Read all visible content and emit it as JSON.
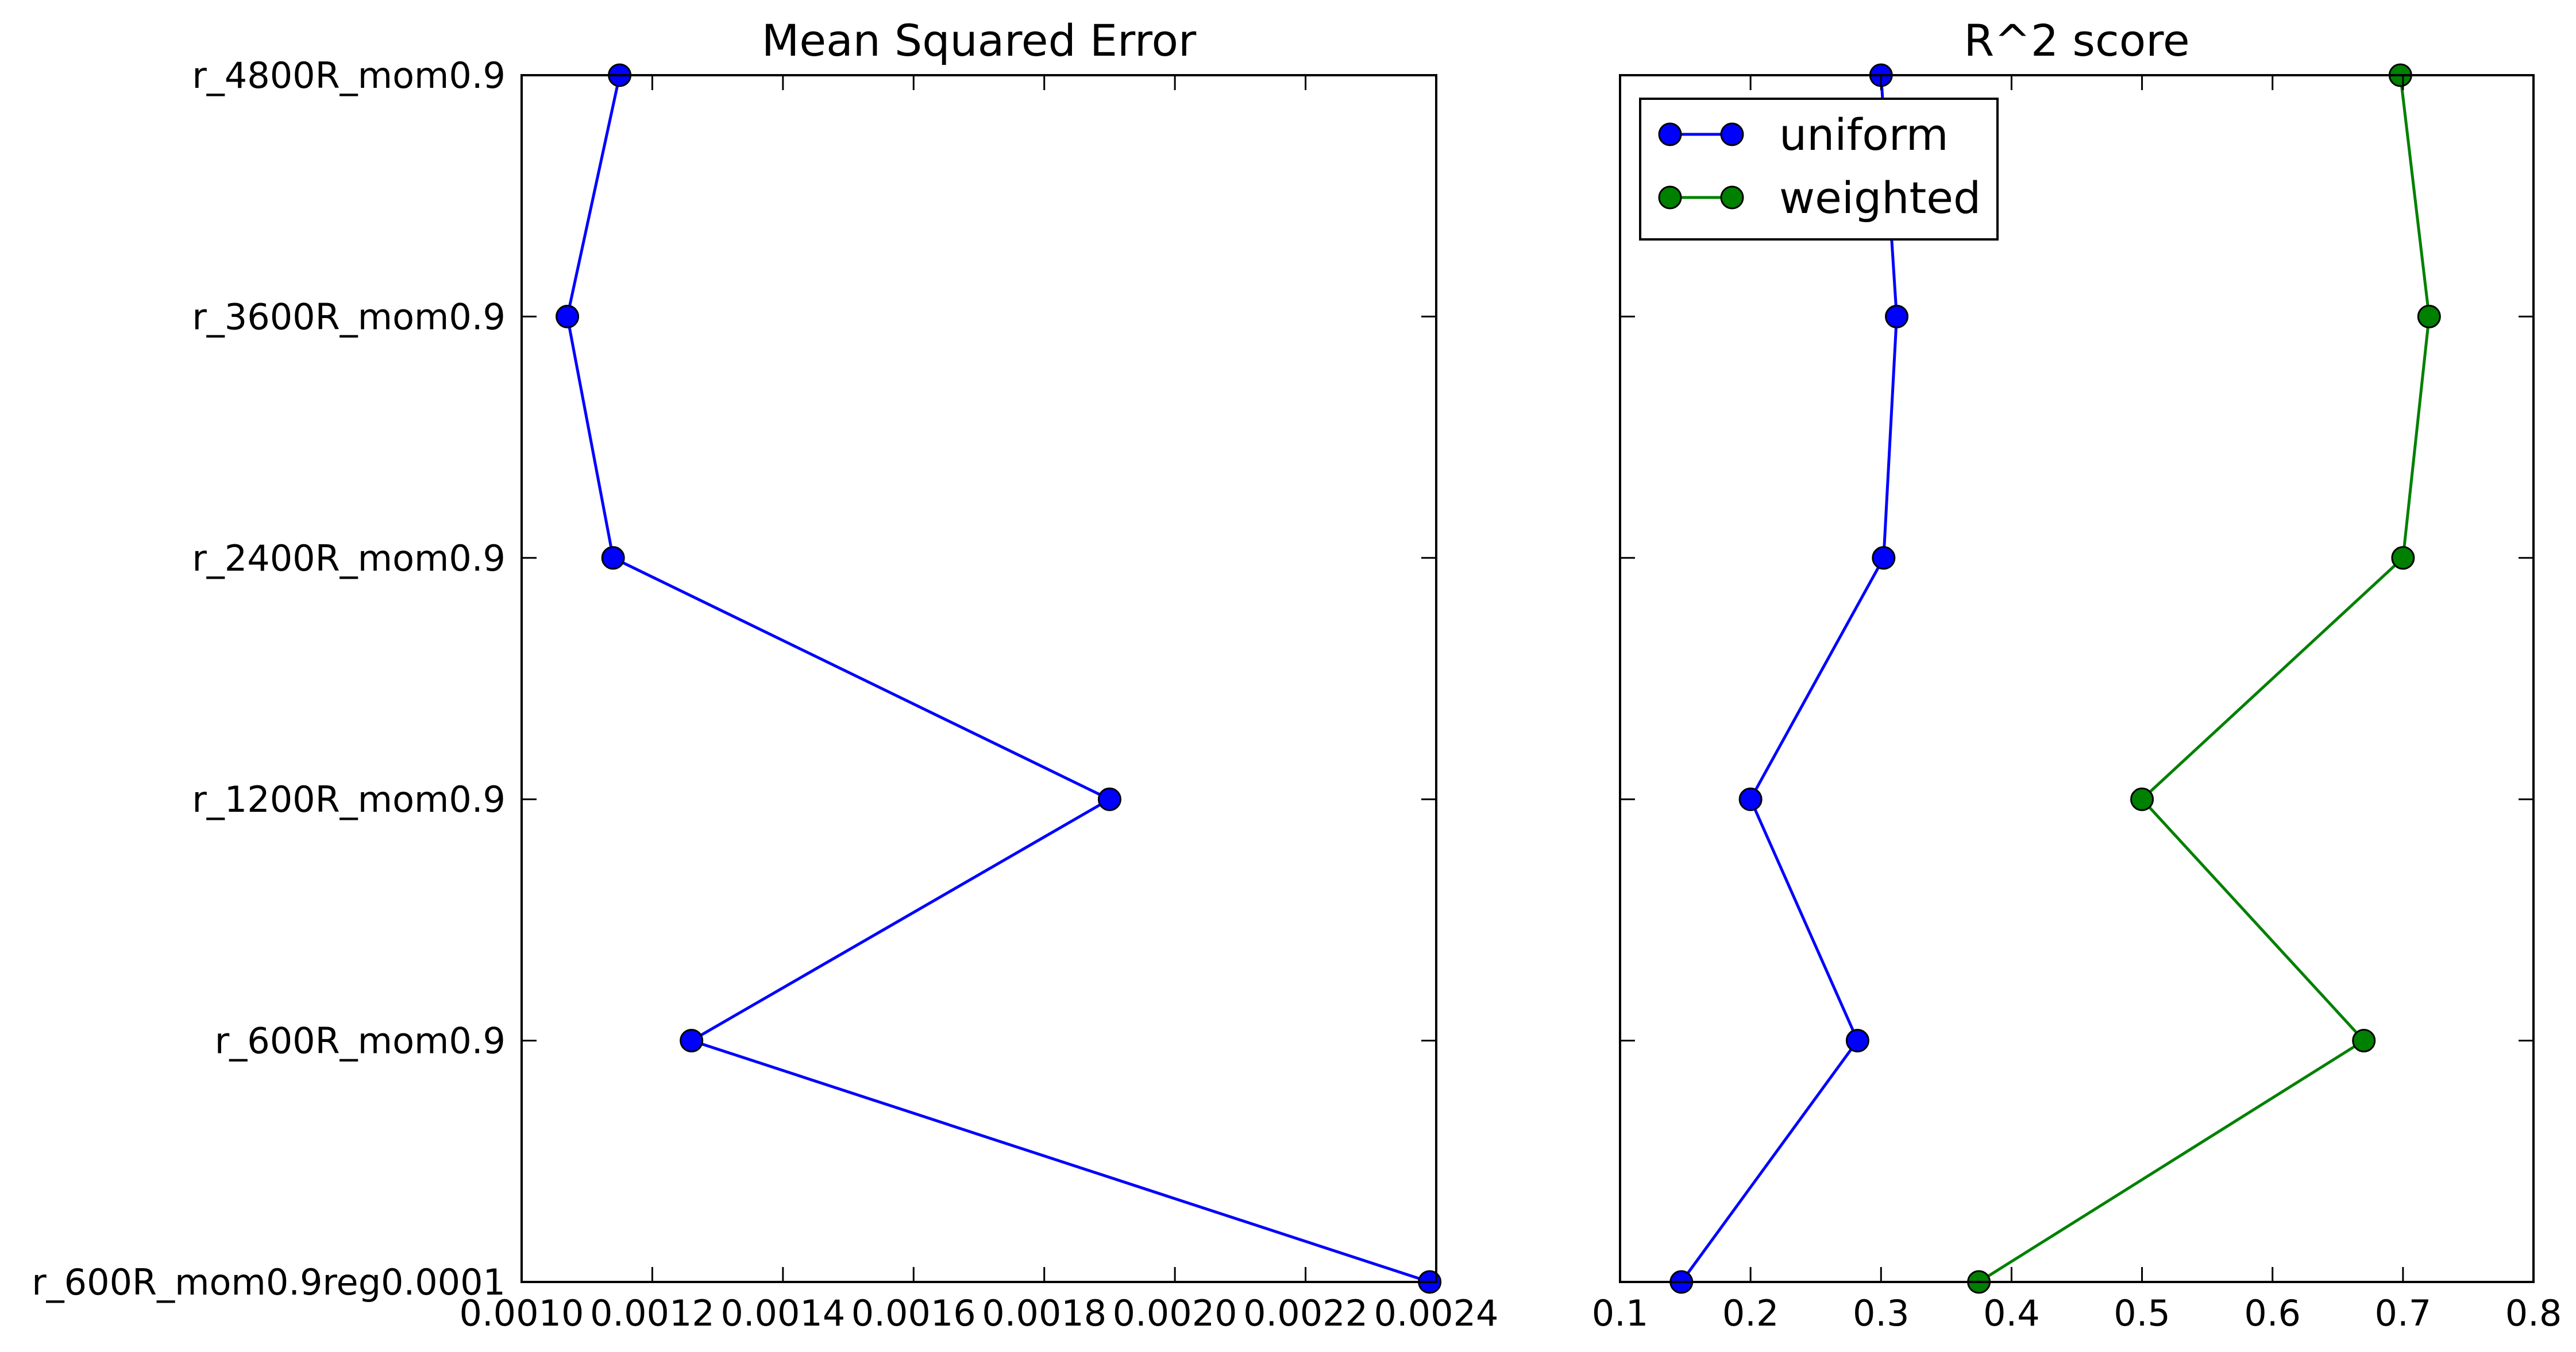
{
  "chart_data": [
    {
      "type": "line",
      "title": "Mean Squared Error",
      "xlabel": "",
      "ylabel": "",
      "categories": [
        "r_600R_mom0.9reg0.0001",
        "r_600R_mom0.9",
        "r_1200R_mom0.9",
        "r_2400R_mom0.9",
        "r_3600R_mom0.9",
        "r_4800R_mom0.9"
      ],
      "xlim": [
        0.001,
        0.0024
      ],
      "xticks": [
        "0.0010",
        "0.0012",
        "0.0014",
        "0.0016",
        "0.0018",
        "0.0020",
        "0.0022",
        "0.0024"
      ],
      "xtick_values": [
        0.001,
        0.0012,
        0.0014,
        0.0016,
        0.0018,
        0.002,
        0.0022,
        0.0024
      ],
      "grid": false,
      "series": [
        {
          "color": "#0000ff",
          "values": [
            0.00239,
            0.00126,
            0.0019,
            0.00114,
            0.00107,
            0.00115
          ]
        }
      ]
    },
    {
      "type": "line",
      "title": "R^2 score",
      "xlabel": "",
      "ylabel": "",
      "categories": [
        "r_600R_mom0.9reg0.0001",
        "r_600R_mom0.9",
        "r_1200R_mom0.9",
        "r_2400R_mom0.9",
        "r_3600R_mom0.9",
        "r_4800R_mom0.9"
      ],
      "xlim": [
        0.1,
        0.8
      ],
      "xticks": [
        "0.1",
        "0.2",
        "0.3",
        "0.4",
        "0.5",
        "0.6",
        "0.7",
        "0.8"
      ],
      "xtick_values": [
        0.1,
        0.2,
        0.3,
        0.4,
        0.5,
        0.6,
        0.7,
        0.8
      ],
      "grid": false,
      "legend": "top-left",
      "series": [
        {
          "name": "uniform",
          "color": "#0000ff",
          "values": [
            0.147,
            0.282,
            0.2,
            0.302,
            0.312,
            0.3
          ]
        },
        {
          "name": "weighted",
          "color": "#008000",
          "values": [
            0.375,
            0.67,
            0.5,
            0.7,
            0.72,
            0.698
          ]
        }
      ]
    }
  ]
}
